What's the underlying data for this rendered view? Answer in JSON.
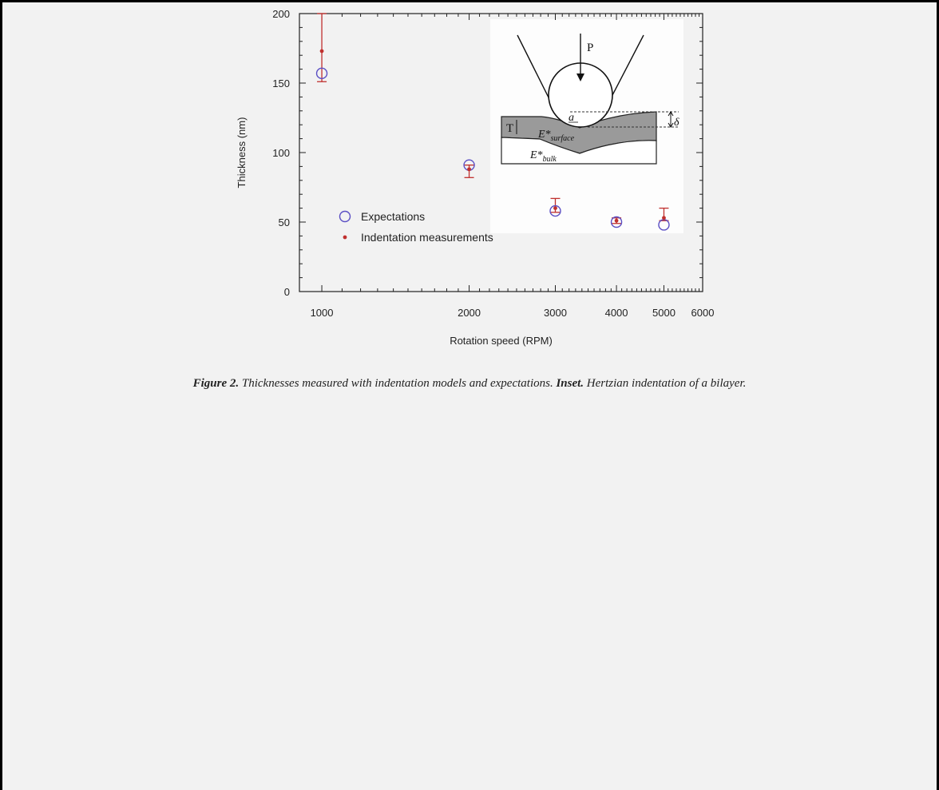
{
  "chart_data": {
    "type": "scatter",
    "xscale": "log",
    "xlabel": "Rotation speed (RPM)",
    "ylabel": "Thickness (nm)",
    "xlim": [
      900,
      6000
    ],
    "ylim": [
      0,
      200
    ],
    "xticks": [
      1000,
      2000,
      3000,
      4000,
      5000,
      6000
    ],
    "xtick_labels": [
      "1000",
      "2000",
      "3000",
      "4000",
      "5000",
      "6000"
    ],
    "yticks": [
      0,
      50,
      100,
      150,
      200
    ],
    "ytick_labels": [
      "0",
      "50",
      "100",
      "150",
      "200"
    ],
    "grid": false,
    "legend_position": "lower-left",
    "series": [
      {
        "name": "Expectations",
        "marker": "open-circle",
        "color": "#5b4fc4",
        "x": [
          1000,
          2000,
          3000,
          4000,
          5000
        ],
        "y": [
          157,
          91,
          58,
          50,
          48
        ]
      },
      {
        "name": "Indentation measurements",
        "marker": "dot",
        "color": "#c0302e",
        "x": [
          1000,
          2000,
          3000,
          4000,
          5000
        ],
        "y": [
          173,
          88,
          60,
          51,
          53
        ],
        "err_low": [
          22,
          6,
          3,
          2,
          2
        ],
        "err_high": [
          27,
          3,
          7,
          2,
          7
        ]
      }
    ],
    "inset": {
      "load_label": "P",
      "contact_label": "a",
      "thickness_label": "T",
      "depth_label": "δ",
      "surface_label": "E*",
      "surface_sub": "surface",
      "bulk_label": "E*",
      "bulk_sub": "bulk"
    }
  },
  "caption": {
    "fig_label": "Figure 2.",
    "fig_text": " Thicknesses measured with indentation models and expectations. ",
    "inset_label": "Inset.",
    "inset_text": " Hertzian indentation of a bilayer."
  }
}
